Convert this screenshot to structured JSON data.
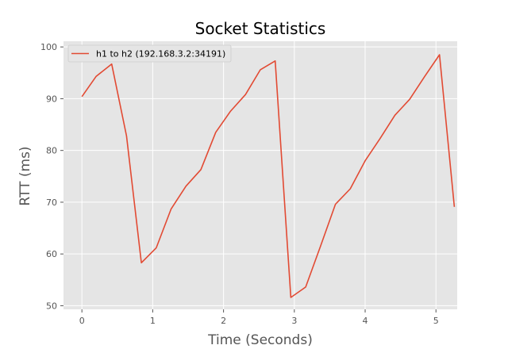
{
  "chart_data": {
    "type": "line",
    "title": "Socket Statistics",
    "xlabel": "Time (Seconds)",
    "ylabel": "RTT (ms)",
    "xlim": [
      -0.26,
      5.3
    ],
    "ylim": [
      49.3,
      101.1
    ],
    "xticks": [
      0,
      1,
      2,
      3,
      4,
      5
    ],
    "yticks": [
      50,
      60,
      70,
      80,
      90,
      100
    ],
    "grid": true,
    "legend_position": "top-left",
    "series": [
      {
        "name": "h1 to h2 (192.168.3.2:34191)",
        "color": "#E24A33",
        "x": [
          0.0,
          0.2,
          0.42,
          0.63,
          0.84,
          1.05,
          1.26,
          1.47,
          1.68,
          1.89,
          2.1,
          2.31,
          2.52,
          2.73,
          2.95,
          3.16,
          3.37,
          3.58,
          3.79,
          4.0,
          4.21,
          4.42,
          4.63,
          4.84,
          5.05,
          5.26
        ],
        "y": [
          90.4,
          94.3,
          96.7,
          82.8,
          58.3,
          61.2,
          68.7,
          73.1,
          76.3,
          83.5,
          87.6,
          90.8,
          95.6,
          97.3,
          51.6,
          53.6,
          61.5,
          69.6,
          72.6,
          78.0,
          82.3,
          86.8,
          89.9,
          94.3,
          98.5,
          69.1
        ]
      }
    ]
  }
}
